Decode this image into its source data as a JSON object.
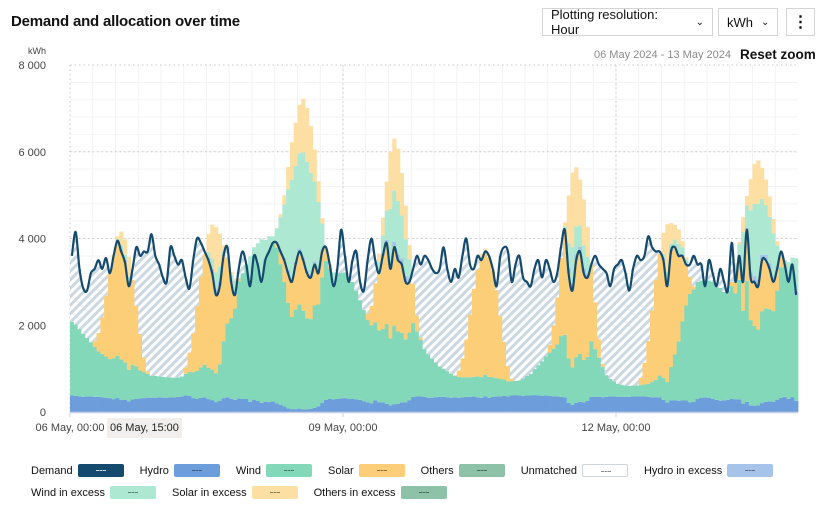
{
  "header": {
    "title": "Demand and allocation over time",
    "resolution_label": "Plotting resolution: Hour",
    "unit_select": "kWh",
    "date_range": "06 May 2024 - 13 May 2024",
    "reset_zoom": "Reset zoom"
  },
  "chart_data": {
    "type": "area",
    "ylabel": "kWh",
    "ylim": [
      0,
      8000
    ],
    "yticks": [
      "0",
      "2 000",
      "4 000",
      "6 000",
      "8 000"
    ],
    "ytick_values": [
      0,
      2000,
      4000,
      6000,
      8000
    ],
    "xticks": [
      {
        "label": "06 May, 00:00",
        "hour": 0
      },
      {
        "label": "09 May, 00:00",
        "hour": 72
      },
      {
        "label": "12 May, 00:00",
        "hour": 144
      }
    ],
    "hover_label": "06 May, 15:00",
    "start": "06 May 2024, 00:00",
    "resolution": "hour",
    "grid": true,
    "legend_position": "bottom",
    "colors": {
      "demand": "#134a6e",
      "hydro": "#6d9edb",
      "wind": "#82d8b9",
      "solar": "#fcce78",
      "others": "#8dc2a8",
      "unmatched": "#ffffff",
      "hydro_excess": "#a6c4ea",
      "wind_excess": "#ade8d2",
      "solar_excess": "#fddfa3",
      "others_excess": "#8dc2a8",
      "hatch": "#cbd8e2"
    },
    "legend": [
      {
        "key": "demand",
        "label": "Demand"
      },
      {
        "key": "hydro",
        "label": "Hydro"
      },
      {
        "key": "wind",
        "label": "Wind"
      },
      {
        "key": "solar",
        "label": "Solar"
      },
      {
        "key": "others",
        "label": "Others"
      },
      {
        "key": "unmatched",
        "label": "Unmatched"
      },
      {
        "key": "hydro_excess",
        "label": "Hydro in excess"
      },
      {
        "key": "wind_excess",
        "label": "Wind in excess"
      },
      {
        "key": "solar_excess",
        "label": "Solar in excess"
      },
      {
        "key": "others_excess",
        "label": "Others in excess"
      }
    ],
    "demand": [
      3600,
      4150,
      3300,
      2850,
      2800,
      3200,
      3300,
      3500,
      3300,
      3550,
      3200,
      3600,
      3950,
      3700,
      3450,
      2900,
      3300,
      3800,
      3600,
      3700,
      3700,
      4100,
      3600,
      3400,
      3100,
      3000,
      3800,
      3600,
      3400,
      3500,
      3100,
      2850,
      3500,
      4000,
      3900,
      3700,
      3500,
      3200,
      2700,
      2900,
      3600,
      3800,
      3000,
      2700,
      3300,
      3700,
      3400,
      2900,
      3600,
      3400,
      3000,
      3500,
      3700,
      3900,
      3900,
      3700,
      3500,
      3200,
      3000,
      3400,
      3700,
      3500,
      3200,
      3100,
      3400,
      3200,
      3700,
      3800,
      3400,
      2900,
      3300,
      4200,
      3600,
      3000,
      3500,
      3700,
      3000,
      2800,
      3500,
      4000,
      3500,
      3200,
      3600,
      3900,
      3300,
      3800,
      3500,
      3400,
      3000,
      3000,
      3300,
      3600,
      3400,
      3600,
      3500,
      3300,
      3200,
      3300,
      3800,
      3300,
      3000,
      3300,
      3100,
      3600,
      4000,
      3400,
      3300,
      3600,
      3500,
      3700,
      3600,
      3300,
      2900,
      3600,
      3800,
      3700,
      3000,
      3400,
      3600,
      3100,
      3000,
      2900,
      3300,
      3500,
      3100,
      3500,
      3300,
      3000,
      3200,
      3800,
      4200,
      3200,
      2800,
      3500,
      3700,
      3200,
      3100,
      3400,
      3600,
      3400,
      3300,
      3200,
      2900,
      3300,
      3400,
      3500,
      3200,
      2800,
      3300,
      3600,
      3500,
      3600,
      4050,
      3800,
      3700,
      3700,
      3500,
      2900,
      3700,
      3800,
      3600,
      3600,
      3400,
      3400,
      3600,
      3400,
      3400,
      2900,
      3500,
      3200,
      2900,
      3300,
      3000,
      2800,
      3900,
      3000,
      3600,
      3000,
      4200,
      3100,
      3000,
      2900,
      3500,
      3500,
      3300,
      3000,
      3300,
      3700,
      3400,
      3000,
      3400,
      2700
    ],
    "hydro": [
      380,
      370,
      360,
      350,
      360,
      360,
      350,
      350,
      340,
      330,
      320,
      300,
      330,
      310,
      320,
      300,
      290,
      300,
      310,
      320,
      330,
      330,
      330,
      340,
      330,
      330,
      340,
      340,
      350,
      360,
      380,
      370,
      320,
      300,
      330,
      340,
      350,
      370,
      360,
      360,
      340,
      340,
      330,
      320,
      310,
      300,
      300,
      290,
      300,
      290,
      280,
      270,
      250,
      250,
      220,
      200,
      180,
      150,
      140,
      130,
      150,
      120,
      130,
      150,
      170,
      220,
      250,
      280,
      300,
      320,
      300,
      310,
      320,
      310,
      300,
      290,
      280,
      250,
      220,
      200,
      270,
      250,
      280,
      260,
      280,
      300,
      320,
      360,
      360,
      350,
      350,
      360,
      360,
      350,
      330,
      330,
      340,
      350,
      350,
      340,
      330,
      340,
      330,
      340,
      350,
      350,
      360,
      340,
      340,
      370,
      330,
      350,
      360,
      360,
      370,
      360,
      380,
      390,
      380,
      370,
      380,
      380,
      390,
      380,
      370,
      380,
      370,
      360,
      360,
      350,
      350,
      330,
      330,
      340,
      340,
      340,
      350,
      350,
      350,
      350,
      340,
      350,
      360,
      360,
      350,
      350,
      350,
      350,
      360,
      360,
      360,
      360,
      350,
      340,
      340,
      340,
      330,
      330,
      320,
      310,
      300,
      290,
      280,
      220,
      230,
      300,
      330,
      350,
      330,
      300,
      280,
      260,
      270,
      280,
      300,
      330,
      320,
      290,
      280,
      270,
      280,
      300,
      330,
      360,
      370,
      350,
      340,
      330,
      360,
      350,
      360,
      340
    ],
    "wind": [
      1700,
      1650,
      1550,
      1450,
      1350,
      1250,
      1150,
      1050,
      1000,
      950,
      900,
      950,
      1000,
      1050,
      1000,
      900,
      800,
      750,
      650,
      600,
      550,
      500,
      500,
      480,
      480,
      470,
      460,
      450,
      450,
      460,
      500,
      550,
      600,
      650,
      700,
      750,
      850,
      950,
      1050,
      1200,
      1400,
      1700,
      2000,
      2400,
      2700,
      2900,
      3100,
      3300,
      3500,
      3600,
      3700,
      3700,
      3800,
      3800,
      3900,
      4000,
      4100,
      4300,
      4400,
      4500,
      4600,
      4700,
      4600,
      4400,
      4200,
      3900,
      3500,
      3200,
      3000,
      2900,
      2900,
      2900,
      2900,
      2800,
      2700,
      2500,
      2300,
      2100,
      1900,
      1800,
      1800,
      1900,
      2100,
      2500,
      2800,
      3000,
      2900,
      2600,
      2300,
      2000,
      1700,
      1500,
      1300,
      1100,
      1000,
      900,
      800,
      700,
      650,
      600,
      550,
      500,
      480,
      460,
      450,
      450,
      450,
      480,
      500,
      500,
      480,
      450,
      420,
      400,
      380,
      350,
      330,
      330,
      350,
      400,
      450,
      500,
      600,
      700,
      800,
      900,
      1000,
      1100,
      1200,
      1400,
      1500,
      1600,
      1700,
      1700,
      1600,
      1500,
      1400,
      1300,
      1100,
      900,
      700,
      500,
      400,
      350,
      300,
      280,
      260,
      250,
      250,
      250,
      260,
      280,
      300,
      350,
      400,
      500,
      600,
      700,
      900,
      1200,
      1600,
      2000,
      2300,
      2500,
      2600,
      2700,
      2700,
      2700,
      2700,
      2700,
      2600,
      2600,
      2500,
      2500,
      2600,
      2800,
      3000,
      3200,
      3300,
      3400,
      3500,
      3500,
      3400,
      3300,
      3200,
      3100,
      3000,
      3000,
      3100,
      3100,
      3200,
      3200
    ],
    "solar": [
      0,
      0,
      0,
      0,
      0,
      0,
      140,
      420,
      840,
      1400,
      1960,
      2380,
      2720,
      2800,
      2660,
      2380,
      1960,
      1400,
      840,
      340,
      60,
      0,
      0,
      0,
      0,
      0,
      0,
      0,
      0,
      0,
      150,
      450,
      900,
      1500,
      2100,
      2550,
      2910,
      3000,
      2850,
      2550,
      2100,
      1500,
      900,
      360,
      60,
      0,
      0,
      0,
      0,
      0,
      0,
      0,
      0,
      0,
      120,
      360,
      720,
      1200,
      1680,
      2040,
      2330,
      2400,
      2280,
      2040,
      1680,
      1200,
      720,
      290,
      50,
      0,
      0,
      0,
      0,
      0,
      0,
      0,
      0,
      0,
      150,
      450,
      900,
      1500,
      2100,
      2550,
      2910,
      3000,
      2850,
      2550,
      2100,
      1500,
      900,
      360,
      60,
      0,
      0,
      0,
      0,
      0,
      0,
      0,
      0,
      0,
      145,
      435,
      870,
      1450,
      2030,
      2465,
      2810,
      2900,
      2755,
      2465,
      2030,
      1450,
      870,
      350,
      60,
      0,
      0,
      0,
      0,
      0,
      0,
      0,
      0,
      0,
      180,
      540,
      1080,
      1800,
      2520,
      3060,
      3490,
      3600,
      3420,
      3060,
      2520,
      1800,
      1080,
      430,
      70,
      0,
      0,
      0,
      0,
      0,
      0,
      0,
      0,
      0,
      165,
      495,
      990,
      1650,
      2310,
      2805,
      3200,
      3300,
      3135,
      2805,
      2310,
      1650,
      990,
      400,
      65,
      0,
      0,
      0,
      0,
      0,
      0,
      0,
      0,
      0,
      100,
      300,
      600,
      1000,
      1400,
      1700,
      1940,
      2000,
      1900,
      1700,
      1400,
      1000,
      600,
      240,
      40,
      0,
      0,
      0
    ]
  }
}
